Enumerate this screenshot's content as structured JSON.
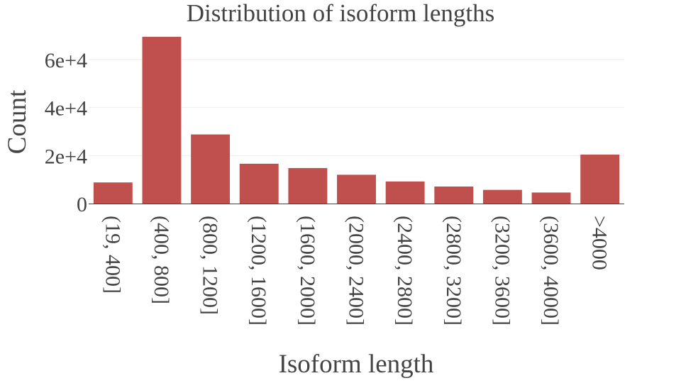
{
  "chart_data": {
    "type": "bar",
    "title": "Distribution of isoform lengths",
    "xlabel": "Isoform length",
    "ylabel": "Count",
    "categories": [
      "(19, 400]",
      "(400, 800]",
      "(800, 1200]",
      "(1200, 1600]",
      "(1600, 2000]",
      "(2000, 2400]",
      "(2400, 2800]",
      "(2800, 3200]",
      "(3200, 3600]",
      "(3600, 4000]",
      ">4000"
    ],
    "values": [
      8800,
      69500,
      28800,
      16600,
      14800,
      12000,
      9200,
      7100,
      5700,
      4600,
      20400
    ],
    "ylim": [
      0,
      73000
    ],
    "yticks": [
      0,
      20000,
      40000,
      60000
    ],
    "ytick_labels": [
      "0",
      "2e+4",
      "4e+4",
      "6e+4"
    ],
    "grid": true,
    "colors": {
      "bar": "#c0504d",
      "text": "#444444",
      "grid": "#eeeeee"
    }
  }
}
